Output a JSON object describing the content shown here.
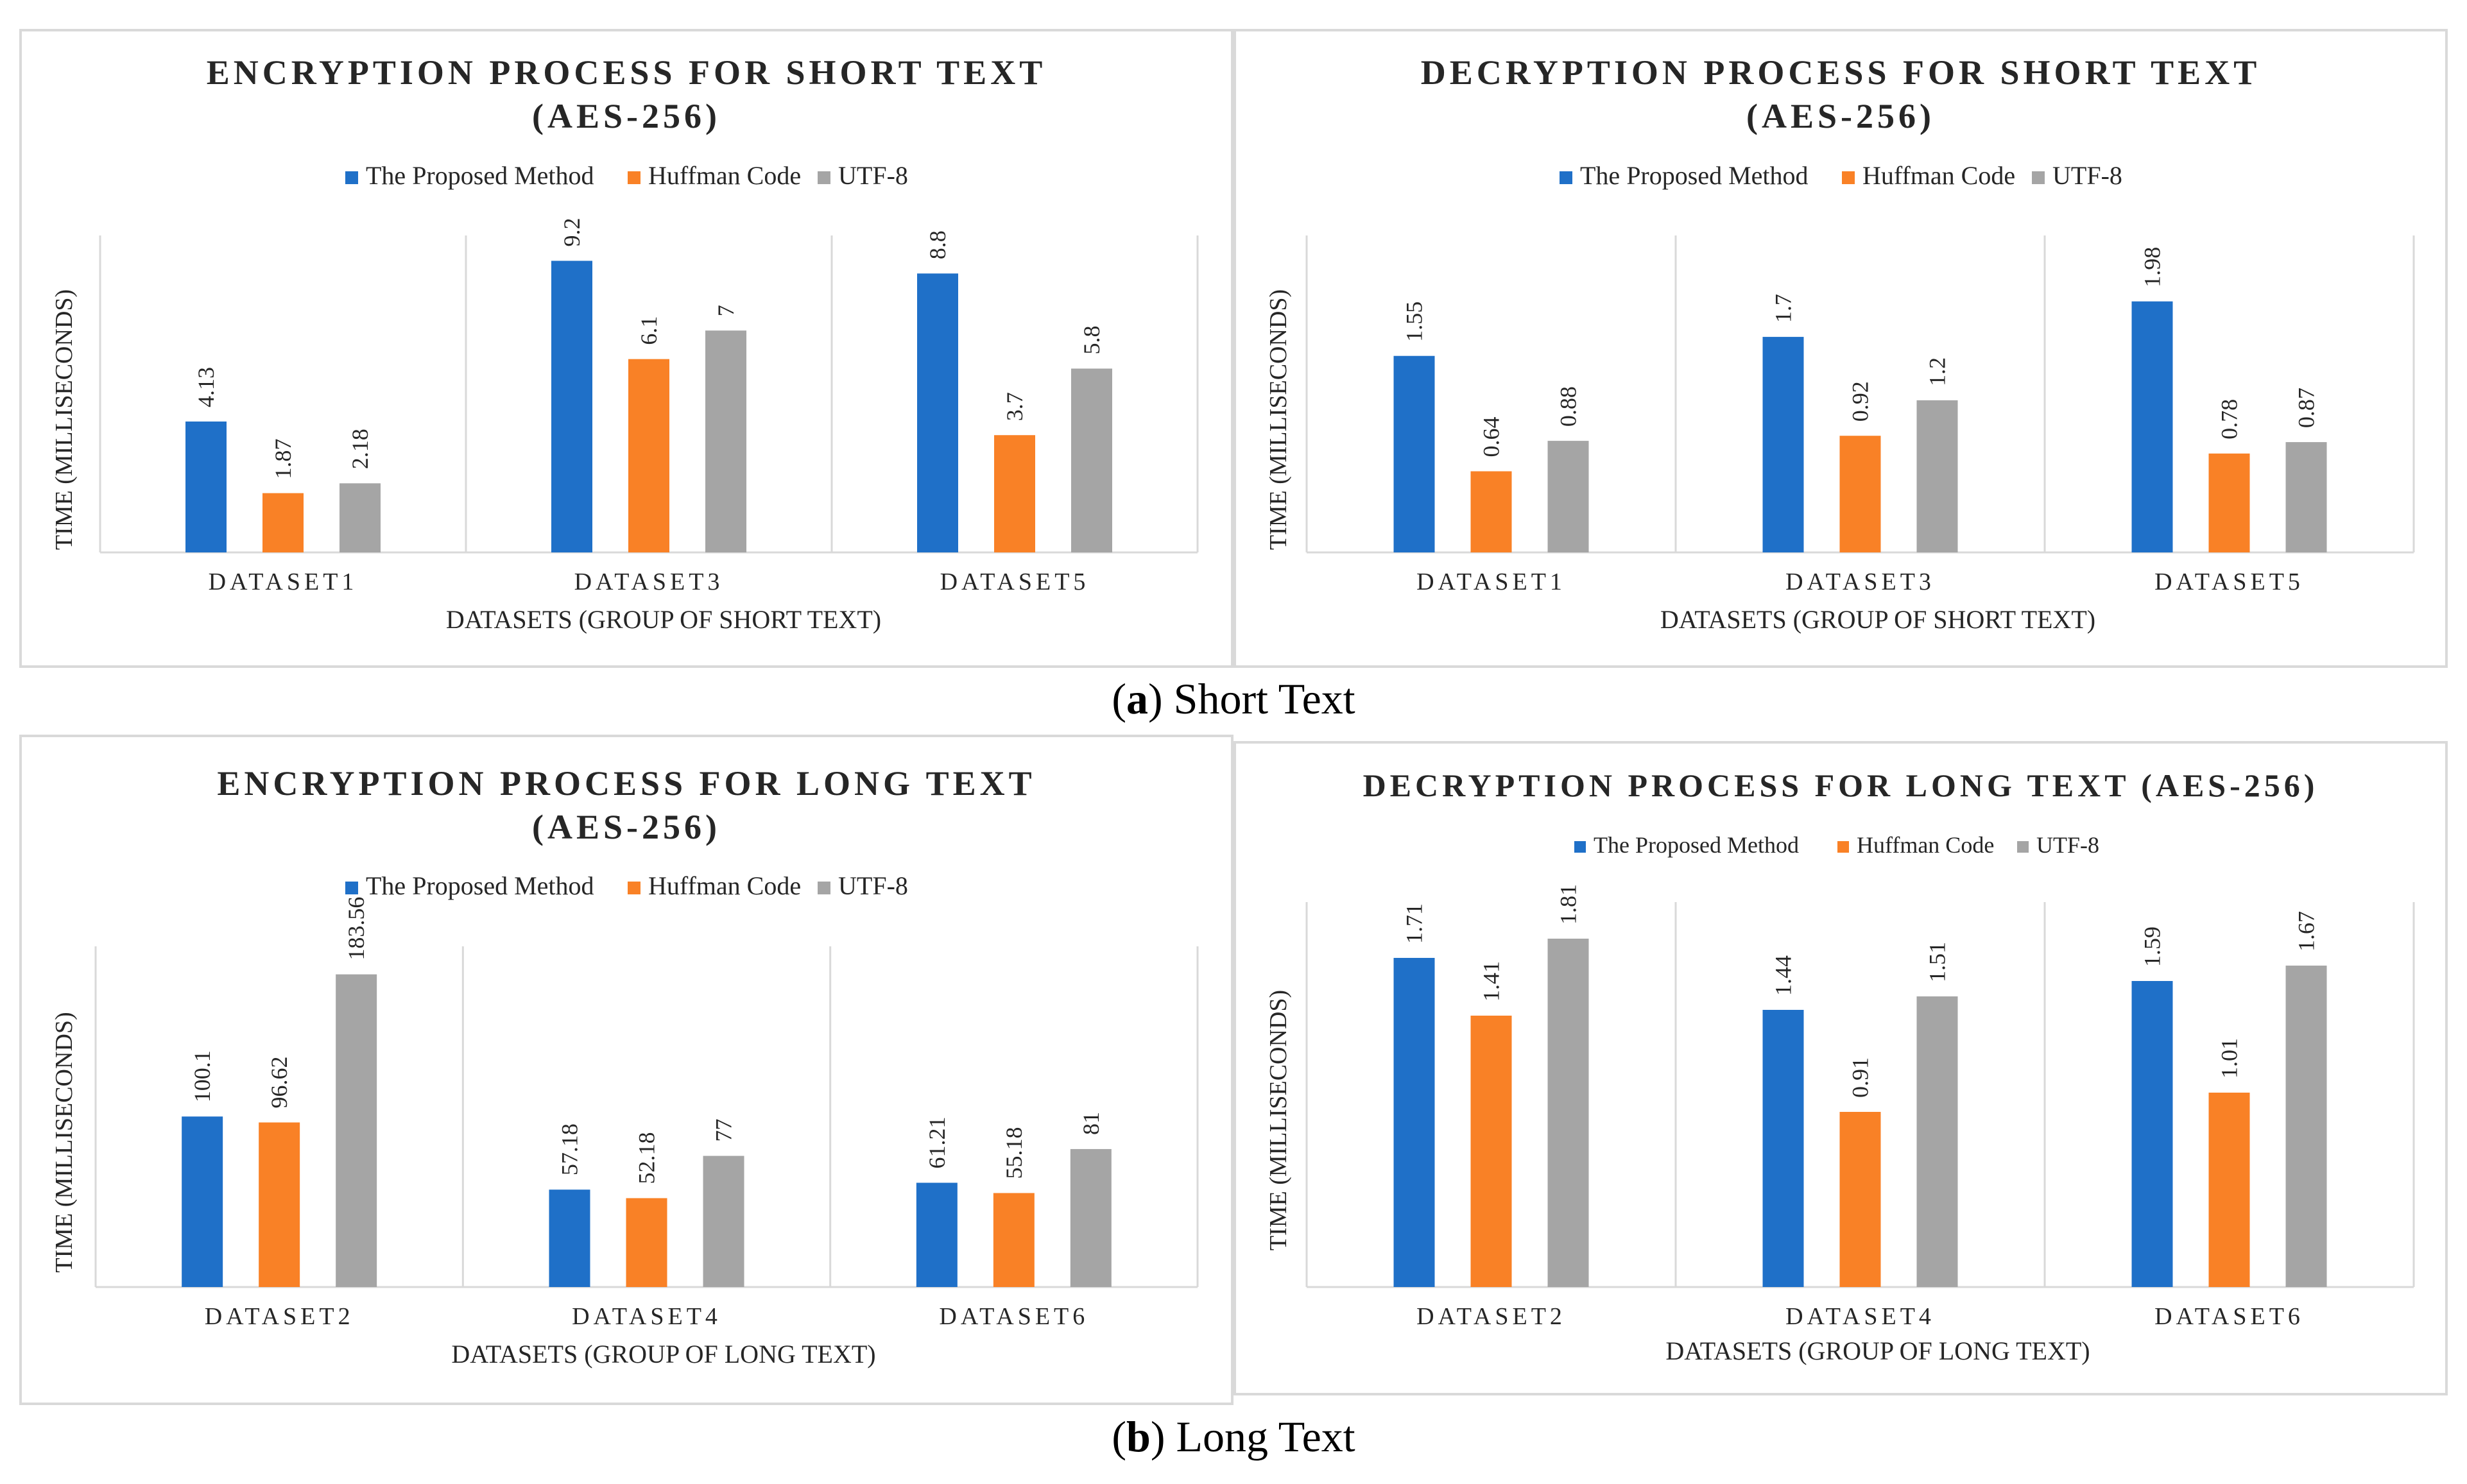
{
  "colors": {
    "proposed": "#1f70c8",
    "huffman": "#f98126",
    "utf8": "#a5a5a5",
    "axis": "#d9d9d9",
    "text": "#262626"
  },
  "captions": {
    "a": {
      "letter": "a",
      "text": " Short Text"
    },
    "b": {
      "letter": "b",
      "text": " Long Text"
    }
  },
  "chart_data": [
    {
      "type": "bar",
      "title_lines": [
        "ENCRYPTION PROCESS FOR SHORT TEXT",
        "(AES-256)"
      ],
      "categories": [
        "DATASET1",
        "DATASET3",
        "DATASET5"
      ],
      "series": [
        {
          "name": "The Proposed Method",
          "values": [
            4.13,
            9.2,
            8.8
          ],
          "labels": [
            "4.13",
            "9.2",
            "8.8"
          ]
        },
        {
          "name": "Huffman Code",
          "values": [
            1.87,
            6.1,
            3.7
          ],
          "labels": [
            "1.87",
            "6.1",
            "3.7"
          ]
        },
        {
          "name": "UTF-8",
          "values": [
            2.18,
            7,
            5.8
          ],
          "labels": [
            "2.18",
            "7",
            "5.8"
          ]
        }
      ],
      "xlabel": "DATASETS (GROUP OF SHORT TEXT)",
      "ylabel": "TIME (MILLISECONDS)",
      "ylim": [
        0,
        10
      ],
      "legend": "top"
    },
    {
      "type": "bar",
      "title_lines": [
        "DECRYPTION PROCESS FOR SHORT TEXT",
        "(AES-256)"
      ],
      "categories": [
        "DATASET1",
        "DATASET3",
        "DATASET5"
      ],
      "series": [
        {
          "name": "The Proposed Method",
          "values": [
            1.55,
            1.7,
            1.98
          ],
          "labels": [
            "1.55",
            "1.7",
            "1.98"
          ]
        },
        {
          "name": "Huffman Code",
          "values": [
            0.64,
            0.92,
            0.78
          ],
          "labels": [
            "0.64",
            "0.92",
            "0.78"
          ]
        },
        {
          "name": "UTF-8",
          "values": [
            0.88,
            1.2,
            0.87
          ],
          "labels": [
            "0.88",
            "1.2",
            "0.87"
          ]
        }
      ],
      "xlabel": "DATASETS (GROUP OF SHORT TEXT)",
      "ylabel": "TIME (MILLISECONDS)",
      "ylim": [
        0,
        2.5
      ],
      "legend": "top"
    },
    {
      "type": "bar",
      "title_lines": [
        "ENCRYPTION PROCESS FOR LONG TEXT",
        "(AES-256)"
      ],
      "categories": [
        "DATASET2",
        "DATASET4",
        "DATASET6"
      ],
      "series": [
        {
          "name": "The Proposed Method",
          "values": [
            100.1,
            57.18,
            61.21
          ],
          "labels": [
            "100.1",
            "57.18",
            "61.21"
          ]
        },
        {
          "name": "Huffman Code",
          "values": [
            96.62,
            52.18,
            55.18
          ],
          "labels": [
            "96.62",
            "52.18",
            "55.18"
          ]
        },
        {
          "name": "UTF-8",
          "values": [
            183.56,
            77,
            81
          ],
          "labels": [
            "183.56",
            "77",
            "81"
          ]
        }
      ],
      "xlabel": "DATASETS (GROUP OF LONG TEXT)",
      "ylabel": "TIME (MILLISECONDS)",
      "ylim": [
        0,
        200
      ],
      "legend": "top"
    },
    {
      "type": "bar",
      "title_lines": [
        "DECRYPTION PROCESS FOR LONG TEXT (AES-256)"
      ],
      "categories": [
        "DATASET2",
        "DATASET4",
        "DATASET6"
      ],
      "series": [
        {
          "name": "The Proposed Method",
          "values": [
            1.71,
            1.44,
            1.59
          ],
          "labels": [
            "1.71",
            "1.44",
            "1.59"
          ]
        },
        {
          "name": "Huffman Code",
          "values": [
            1.41,
            0.91,
            1.01
          ],
          "labels": [
            "1.41",
            "0.91",
            "1.01"
          ]
        },
        {
          "name": "UTF-8",
          "values": [
            1.81,
            1.51,
            1.67
          ],
          "labels": [
            "1.81",
            "1.51",
            "1.67"
          ]
        }
      ],
      "xlabel": "DATASETS (GROUP OF LONG TEXT)",
      "ylabel": "TIME (MILLISECONDS)",
      "ylim": [
        0,
        2
      ],
      "legend": "top"
    }
  ]
}
